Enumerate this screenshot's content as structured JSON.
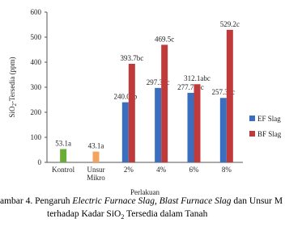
{
  "chart_data": {
    "type": "bar",
    "y_label": [
      "SiO",
      "2",
      "-Tersedia (ppm)"
    ],
    "x_label": "Perlakuan",
    "categories": [
      [
        "Kontrol"
      ],
      [
        "Unsur",
        "Mikro"
      ],
      [
        "2%"
      ],
      [
        "4%"
      ],
      [
        "6%"
      ],
      [
        "8%"
      ]
    ],
    "ylim": [
      0,
      600
    ],
    "yticks": [
      0,
      100,
      200,
      300,
      400,
      500,
      600
    ],
    "single_bars": {
      "colors": [
        "#6aac3a",
        "#f4a460",
        null,
        null,
        null,
        null
      ],
      "values": [
        53.1,
        43.1,
        null,
        null,
        null,
        null
      ],
      "value_labels": [
        "53.1a",
        "43.1a",
        null,
        null,
        null,
        null
      ]
    },
    "series": [
      {
        "name": "EF Slag",
        "color": "#3a6fbf",
        "values": [
          null,
          null,
          240.0,
          297.3,
          277.7,
          257.3
        ],
        "value_labels": [
          null,
          null,
          "240.0ab",
          "297.3bc",
          "277.7abc",
          "257.3bc"
        ]
      },
      {
        "name": "BF Slag",
        "color": "#c0393b",
        "values": [
          null,
          null,
          393.7,
          469.5,
          312.1,
          529.2
        ],
        "value_labels": [
          null,
          null,
          "393.7bc",
          "469.5c",
          "312.1abc",
          "529.2c"
        ]
      }
    ]
  },
  "caption": {
    "line1": [
      "ambar 4. Pengaruh ",
      "Electric Furnace Slag",
      ", ",
      "Blast Furnace Slag",
      " dan Unsur M"
    ],
    "line2": [
      "terhadap Kadar SiO",
      "2",
      " Tersedia dalam Tanah"
    ]
  }
}
